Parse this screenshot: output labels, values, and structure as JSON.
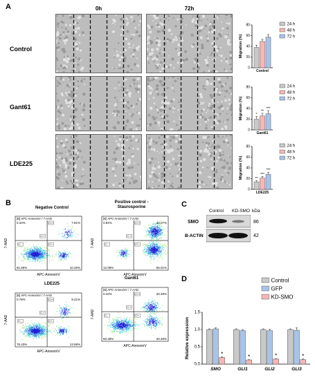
{
  "panelA": {
    "letter": "A",
    "col_headers": [
      "0h",
      "72h"
    ],
    "rows": [
      {
        "label": "Control",
        "chart_index": 0
      },
      {
        "label": "Gant61",
        "chart_index": 1
      },
      {
        "label": "LDE225",
        "chart_index": 2
      }
    ]
  },
  "panelB": {
    "letter": "B",
    "plots": [
      {
        "title": "Negative Control",
        "header": "[B] APC-AnnexinV / 7-AAD",
        "q": {
          "ul": "0.34%",
          "ur": "7.81%",
          "ll": "81.59%",
          "lr": "10.26%"
        }
      },
      {
        "title": "Positive control -\nStaurosporine",
        "header": "[B] APC-AnnexinV / 7-AAD",
        "q": {
          "ul": "0.84%",
          "ur": "32.07%",
          "ll": "12.08%",
          "lr": "55.01%"
        }
      },
      {
        "title": "LDE225",
        "header": "[B] APC-AnnexinV / 7-AAD",
        "q": {
          "ul": "0.78%",
          "ur": "9.21%",
          "ll": "76.43%",
          "lr": "13.58%"
        }
      },
      {
        "title": "Gant61",
        "header": "[B] APC-AnnexinV / 7-AAD",
        "q": {
          "ul": "0.42%",
          "ur": "20.48%",
          "ll": "66.48%",
          "lr": "20.48%"
        }
      }
    ],
    "xlabel": "APC-AnnexinV",
    "ylabel": "7-AAD",
    "gate_labels": {
      "ul": "C-+",
      "ur": "C++",
      "ll": "C--",
      "lr": "C+-"
    }
  },
  "panelC": {
    "letter": "C",
    "lanes": [
      "Control",
      "KD-SMO"
    ],
    "kda_label": "kDa",
    "bands": [
      {
        "name": "SMO",
        "kda": "86"
      },
      {
        "name": "B-ACTIN",
        "kda": "42"
      }
    ]
  },
  "panelD": {
    "letter": "D"
  },
  "chart_data": [
    {
      "type": "bar",
      "categories": [
        "Control"
      ],
      "series": [
        {
          "name": "24 h",
          "values": [
            38
          ],
          "err": [
            4
          ]
        },
        {
          "name": "48 h",
          "values": [
            49
          ],
          "err": [
            4
          ]
        },
        {
          "name": "72 h",
          "values": [
            57
          ],
          "err": [
            5
          ]
        }
      ],
      "ylabel": "Migration (%)",
      "xlabel": "Control",
      "ylim": [
        0,
        80
      ],
      "yticks": [
        0,
        20,
        40,
        60,
        80
      ],
      "legend": "top-right",
      "colors": [
        "#c9c9c9",
        "#f6b6b6",
        "#a8c4e8"
      ],
      "stars": [
        "",
        "",
        ""
      ]
    },
    {
      "type": "bar",
      "categories": [
        "Gant61"
      ],
      "series": [
        {
          "name": "24 h",
          "values": [
            20
          ],
          "err": [
            5
          ]
        },
        {
          "name": "48 h",
          "values": [
            26
          ],
          "err": [
            5
          ]
        },
        {
          "name": "72 h",
          "values": [
            30
          ],
          "err": [
            6
          ]
        }
      ],
      "ylabel": "Migration (%)",
      "xlabel": "Gant61",
      "ylim": [
        0,
        80
      ],
      "yticks": [
        0,
        20,
        40,
        60,
        80
      ],
      "legend": "top-right",
      "colors": [
        "#c9c9c9",
        "#f6b6b6",
        "#a8c4e8"
      ],
      "stars": [
        "*",
        "**",
        "***"
      ]
    },
    {
      "type": "bar",
      "categories": [
        "LDE225"
      ],
      "series": [
        {
          "name": "24 h",
          "values": [
            14
          ],
          "err": [
            2
          ]
        },
        {
          "name": "48 h",
          "values": [
            21
          ],
          "err": [
            3
          ]
        },
        {
          "name": "72 h",
          "values": [
            28
          ],
          "err": [
            4
          ]
        }
      ],
      "ylabel": "Migration (%)",
      "xlabel": "LDE225",
      "ylim": [
        0,
        80
      ],
      "yticks": [
        0,
        20,
        40,
        60,
        80
      ],
      "legend": "top-right",
      "colors": [
        "#c9c9c9",
        "#f6b6b6",
        "#a8c4e8"
      ],
      "stars": [
        "**",
        "***",
        "***"
      ]
    },
    {
      "type": "bar",
      "categories": [
        "SMO",
        "GLI1",
        "GLI2",
        "GLI3"
      ],
      "series": [
        {
          "name": "Control",
          "values": [
            1.0,
            1.0,
            1.0,
            1.0
          ],
          "err": [
            0.02,
            0.02,
            0.02,
            0.02
          ]
        },
        {
          "name": "GFP",
          "values": [
            1.02,
            0.97,
            0.97,
            0.98
          ],
          "err": [
            0.03,
            0.03,
            0.04,
            0.07
          ]
        },
        {
          "name": "KD-SMO",
          "values": [
            0.19,
            0.12,
            0.15,
            0.13
          ],
          "err": [
            0.02,
            0.01,
            0.01,
            0.02
          ]
        }
      ],
      "ylabel": "Relative expression",
      "ylim": [
        0,
        1.5
      ],
      "yticks": [
        0.0,
        0.5,
        1.0,
        1.5
      ],
      "legend": "top-right",
      "colors": [
        "#c9c9c9",
        "#a8c4e8",
        "#f6b6b6"
      ],
      "stars": [
        "*",
        "*",
        "*",
        "*"
      ]
    }
  ]
}
